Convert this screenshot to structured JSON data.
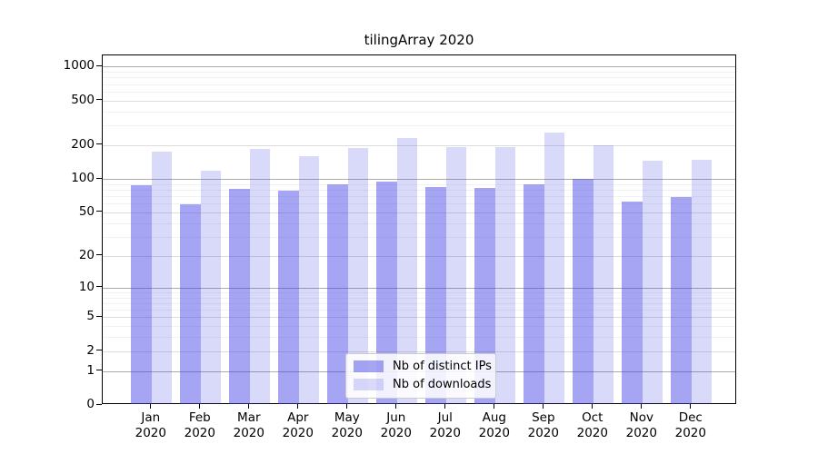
{
  "title": "tilingArray 2020",
  "chart_data": {
    "type": "bar",
    "title": "tilingArray 2020",
    "categories": [
      "Jan",
      "Feb",
      "Mar",
      "Apr",
      "May",
      "Jun",
      "Jul",
      "Aug",
      "Sep",
      "Oct",
      "Nov",
      "Dec"
    ],
    "x_second_line": "2020",
    "series": [
      {
        "name": "Nb of distinct IPs",
        "values": [
          88,
          59,
          82,
          79,
          90,
          94,
          84,
          83,
          90,
          100,
          63,
          69
        ]
      },
      {
        "name": "Nb of downloads",
        "values": [
          174,
          118,
          184,
          161,
          190,
          234,
          194,
          191,
          258,
          200,
          145,
          149
        ]
      }
    ],
    "yticks": [
      0,
      1,
      2,
      5,
      10,
      20,
      50,
      100,
      200,
      500,
      1000
    ],
    "yscale": "log10(v+1)",
    "ylim": [
      0,
      1250
    ],
    "grid": "horizontal",
    "legend_position": "inside-bottom-center",
    "colors": {
      "bar_ips": "rgba(64,64,230,0.47)",
      "bar_downloads": "rgba(64,64,230,0.20)",
      "bar_ips_hex_on_white": "#a6a6f1",
      "bar_downloads_hex_on_white": "#d8d8f9",
      "grid_decade": "#ababab",
      "grid_labeled": "#dcdcdc",
      "grid_minor": "#f1f1f1",
      "axis": "#000000"
    }
  }
}
